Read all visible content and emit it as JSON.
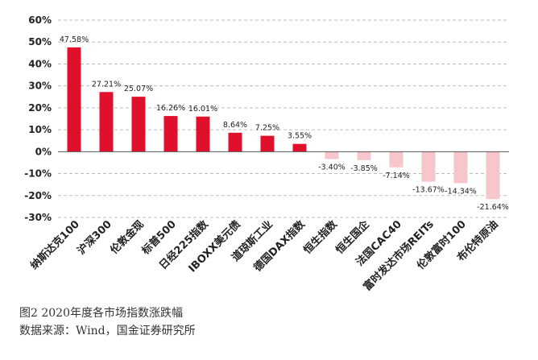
{
  "figure": {
    "caption": "图2  2020年度各市场指数涨跌幅",
    "source": "数据来源：Wind，国金证券研究所"
  },
  "chart_data": {
    "type": "bar",
    "categories": [
      "纳斯达克100",
      "沪深300",
      "伦敦金现",
      "标普500",
      "日经225指数",
      "IBOXX美元债",
      "道琼斯工业",
      "德国DAX指数",
      "恒生指数",
      "恒生国企",
      "法国CAC40",
      "富时发达市场REITs",
      "伦敦富时100",
      "布伦特原油"
    ],
    "values": [
      47.58,
      27.21,
      25.07,
      16.26,
      16.01,
      8.64,
      7.25,
      3.55,
      -3.4,
      -3.85,
      -7.14,
      -13.67,
      -14.34,
      -21.64
    ],
    "value_labels": [
      "47.58%",
      "27.21%",
      "25.07%",
      "16.26%",
      "16.01%",
      "8.64%",
      "7.25%",
      "3.55%",
      "-3.40%",
      "-3.85%",
      "-7.14%",
      "-13.67%",
      "-14.34%",
      "-21.64%"
    ],
    "yticks": [
      60,
      50,
      40,
      30,
      20,
      10,
      0,
      -10,
      -20,
      -30
    ],
    "ytick_labels": [
      "60%",
      "50%",
      "40%",
      "30%",
      "20%",
      "10%",
      "0%",
      "-10%",
      "-20%",
      "-30%"
    ],
    "ylim": [
      -30,
      60
    ],
    "grid": "horizontal dashed",
    "colors": {
      "positive": "#e0102a",
      "negative": "#f7c6cc",
      "grid": "#bdbdbd",
      "text": "#222222"
    }
  }
}
